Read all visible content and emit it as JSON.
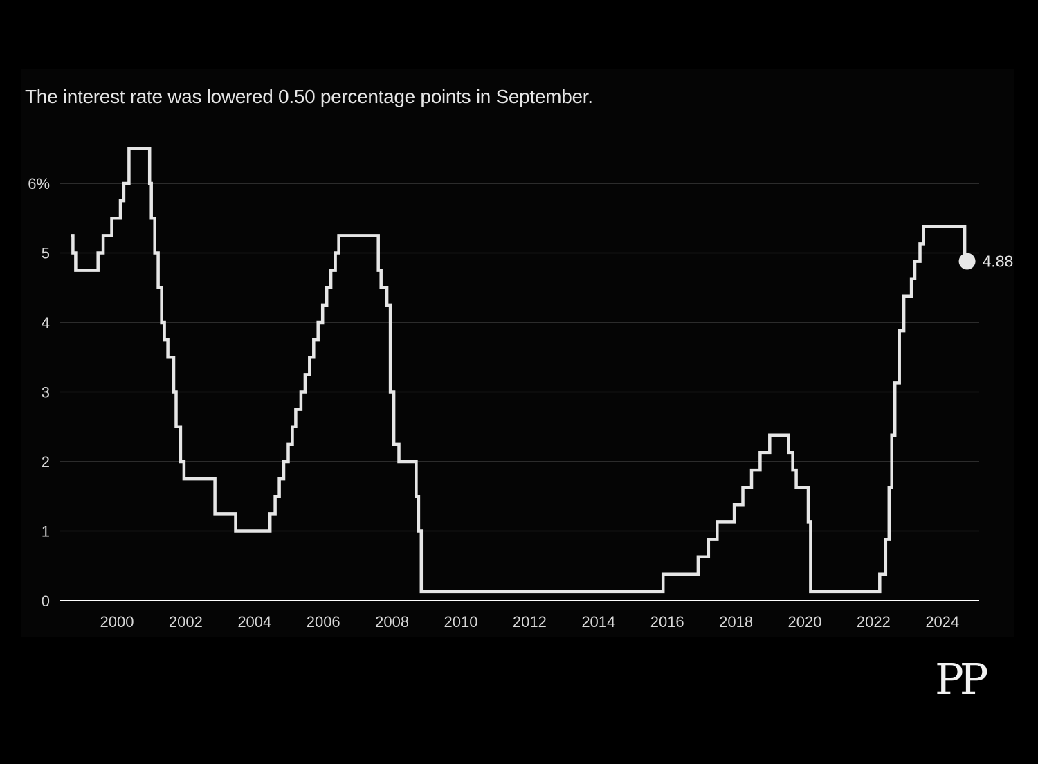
{
  "colors": {
    "background": "#000000",
    "line": "#e6e6e6",
    "grid": "#444444",
    "axis": "#ffffff",
    "text": "#e6e6e6"
  },
  "logo": {
    "text": "PP"
  },
  "chart_data": {
    "type": "line",
    "subtitle": "The interest rate was lowered 0.50 percentage points in September.",
    "step": true,
    "xlim": [
      1998.3,
      2025.1
    ],
    "ylim": [
      0,
      6.5
    ],
    "x_ticks": [
      2000,
      2002,
      2004,
      2006,
      2008,
      2010,
      2012,
      2014,
      2016,
      2018,
      2020,
      2022,
      2024
    ],
    "x_tick_labels": [
      "2000",
      "2002",
      "2004",
      "2006",
      "2008",
      "2010",
      "2012",
      "2014",
      "2016",
      "2018",
      "2020",
      "2022",
      "2024"
    ],
    "y_ticks": [
      0,
      1,
      2,
      3,
      4,
      5,
      6
    ],
    "y_tick_labels": [
      "0",
      "1",
      "2",
      "3",
      "4",
      "5",
      "6%"
    ],
    "grid": true,
    "end_label": "4.88",
    "end_point": {
      "x": 2024.72,
      "y": 4.88
    },
    "series": [
      {
        "name": "Interest rate",
        "x": [
          1998.66,
          1998.72,
          1998.8,
          1999.45,
          1999.6,
          1999.85,
          2000.1,
          2000.2,
          2000.35,
          2000.95,
          2001.0,
          2001.1,
          2001.2,
          2001.3,
          2001.38,
          2001.48,
          2001.65,
          2001.72,
          2001.85,
          2001.95,
          2002.85,
          2003.45,
          2004.45,
          2004.6,
          2004.72,
          2004.85,
          2004.98,
          2005.1,
          2005.2,
          2005.35,
          2005.47,
          2005.6,
          2005.72,
          2005.85,
          2005.98,
          2006.1,
          2006.22,
          2006.35,
          2006.45,
          2007.6,
          2007.68,
          2007.85,
          2007.95,
          2008.05,
          2008.2,
          2008.7,
          2008.77,
          2008.85,
          2015.88,
          2016.9,
          2017.2,
          2017.45,
          2017.95,
          2018.2,
          2018.45,
          2018.7,
          2018.98,
          2019.53,
          2019.65,
          2019.75,
          2020.1,
          2020.17,
          2022.18,
          2022.35,
          2022.45,
          2022.53,
          2022.62,
          2022.75,
          2022.88,
          2023.1,
          2023.2,
          2023.35,
          2023.45,
          2023.55,
          2024.65
        ],
        "values": [
          5.25,
          5.0,
          4.75,
          5.0,
          5.25,
          5.5,
          5.75,
          6.0,
          6.5,
          6.0,
          5.5,
          5.0,
          4.5,
          4.0,
          3.75,
          3.5,
          3.0,
          2.5,
          2.0,
          1.75,
          1.25,
          1.0,
          1.25,
          1.5,
          1.75,
          2.0,
          2.25,
          2.5,
          2.75,
          3.0,
          3.25,
          3.5,
          3.75,
          4.0,
          4.25,
          4.5,
          4.75,
          5.0,
          5.25,
          4.75,
          4.5,
          4.25,
          3.0,
          2.25,
          2.0,
          1.5,
          1.0,
          0.13,
          0.38,
          0.63,
          0.88,
          1.13,
          1.38,
          1.63,
          1.88,
          2.13,
          2.38,
          2.13,
          1.88,
          1.63,
          1.13,
          0.13,
          0.38,
          0.88,
          1.63,
          2.38,
          3.13,
          3.88,
          4.38,
          4.63,
          4.88,
          5.13,
          5.38,
          5.38,
          4.88
        ]
      }
    ]
  }
}
